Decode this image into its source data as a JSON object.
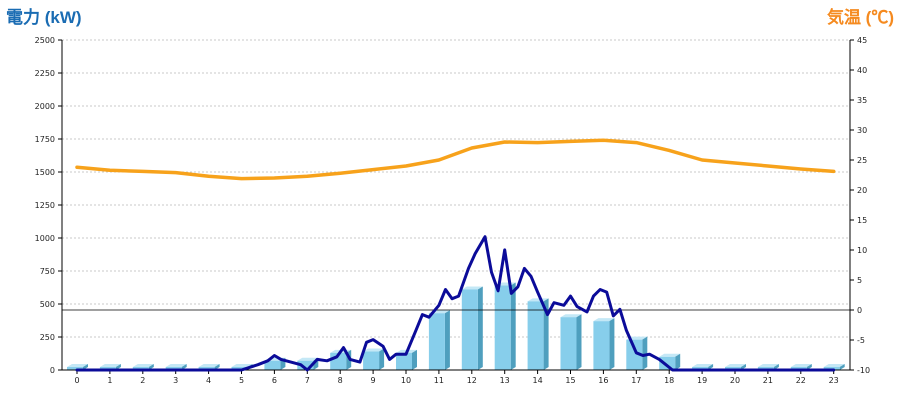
{
  "colors": {
    "power_title": "#1a6cb3",
    "temp_title": "#f58a1f",
    "bar_front": "#87ceeb",
    "bar_side": "#4f9fbe",
    "bar_top": "#c4e8f6",
    "power_line": "#0b0b99",
    "temp_line": "#f7a21b",
    "grid": "#b8b8b8",
    "axis": "#000000"
  },
  "chart_data": {
    "type": "bar+line",
    "title_left": "電力 (kW)",
    "title_right": "気温 (℃)",
    "categories": [
      "0",
      "1",
      "2",
      "3",
      "4",
      "5",
      "6",
      "7",
      "8",
      "9",
      "10",
      "11",
      "12",
      "13",
      "14",
      "15",
      "16",
      "17",
      "18",
      "19",
      "20",
      "21",
      "22",
      "23"
    ],
    "y_left": {
      "min": 0,
      "max": 2500,
      "ticks": [
        0,
        250,
        500,
        750,
        1000,
        1250,
        1500,
        1750,
        2000,
        2250,
        2500
      ]
    },
    "y_right": {
      "min": -10,
      "max": 45,
      "ticks": [
        -10,
        -5,
        0,
        5,
        10,
        15,
        20,
        25,
        30,
        35,
        40,
        45
      ]
    },
    "grid": true,
    "zero_line_right": 0,
    "bars_power_kw": [
      0,
      0,
      0,
      0,
      0,
      0,
      70,
      70,
      130,
      140,
      130,
      430,
      610,
      640,
      520,
      400,
      370,
      230,
      100,
      0,
      0,
      0,
      0,
      0
    ],
    "power_line_kw": {
      "x": [
        5.0,
        5.5,
        5.8,
        6.0,
        6.2,
        6.5,
        6.8,
        7.0,
        7.3,
        7.6,
        7.9,
        8.1,
        8.3,
        8.6,
        8.8,
        9.0,
        9.3,
        9.5,
        9.7,
        10.0,
        10.3,
        10.5,
        10.7,
        11.0,
        11.2,
        11.4,
        11.6,
        11.9,
        12.1,
        12.4,
        12.6,
        12.8,
        13.0,
        13.2,
        13.4,
        13.6,
        13.8,
        14.0,
        14.3,
        14.5,
        14.8,
        15.0,
        15.2,
        15.5,
        15.7,
        15.9,
        16.1,
        16.3,
        16.5,
        16.7,
        17.0,
        17.2,
        17.4,
        17.7,
        17.9,
        18.1
      ],
      "y": [
        0,
        40,
        70,
        110,
        80,
        60,
        40,
        0,
        80,
        70,
        100,
        170,
        80,
        60,
        210,
        230,
        180,
        80,
        120,
        120,
        300,
        420,
        400,
        490,
        610,
        540,
        560,
        770,
        880,
        1010,
        740,
        600,
        910,
        580,
        630,
        770,
        710,
        590,
        420,
        510,
        490,
        560,
        480,
        440,
        560,
        610,
        590,
        410,
        460,
        300,
        130,
        110,
        120,
        80,
        40,
        0
      ]
    },
    "temperature_c": {
      "x": [
        0,
        1,
        2,
        3,
        4,
        5,
        6,
        7,
        8,
        9,
        10,
        11,
        12,
        13,
        14,
        15,
        16,
        17,
        18,
        19,
        20,
        21,
        22,
        23
      ],
      "y": [
        23.8,
        23.3,
        23.1,
        22.9,
        22.3,
        21.9,
        22.0,
        22.3,
        22.8,
        23.4,
        24.0,
        25.0,
        27.0,
        28.0,
        27.9,
        28.1,
        28.3,
        27.9,
        26.6,
        25.0,
        24.5,
        24.0,
        23.5,
        23.1
      ]
    }
  }
}
